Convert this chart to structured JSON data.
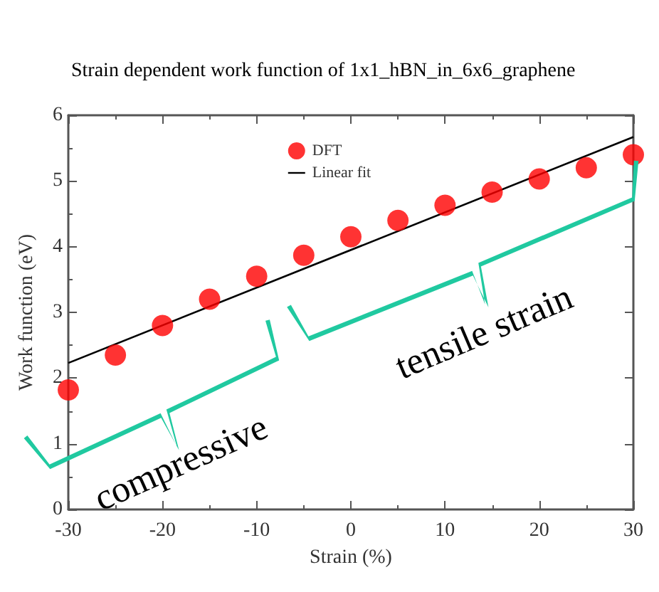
{
  "chart_data": {
    "type": "scatter",
    "title": "Strain dependent work function of 1x1_hBN_in_6x6_graphene",
    "xlabel": "Strain (%)",
    "ylabel": "Work function (eV)",
    "x": [
      -30,
      -25,
      -20,
      -15,
      -10,
      -5,
      0,
      5,
      10,
      15,
      20,
      25,
      30
    ],
    "series": [
      {
        "name": "DFT",
        "type": "scatter",
        "color": "#ff0000",
        "marker": "circle",
        "values": [
          1.82,
          2.35,
          2.8,
          3.2,
          3.55,
          3.87,
          4.15,
          4.4,
          4.63,
          4.83,
          5.03,
          5.2,
          5.4
        ]
      },
      {
        "name": "Linear fit",
        "type": "line",
        "color": "#000000",
        "marker": "none",
        "x": [
          -30,
          30
        ],
        "values": [
          2.23,
          5.67
        ]
      }
    ],
    "xlim": [
      -30,
      30
    ],
    "xticks": [
      -30,
      -20,
      -10,
      0,
      10,
      20,
      30
    ],
    "ylim": [
      0,
      6
    ],
    "yticks": [
      0,
      1,
      2,
      3,
      4,
      5,
      6
    ],
    "grid": false,
    "legend": "top",
    "annotations": [
      "compressive",
      "tensile strain"
    ]
  }
}
